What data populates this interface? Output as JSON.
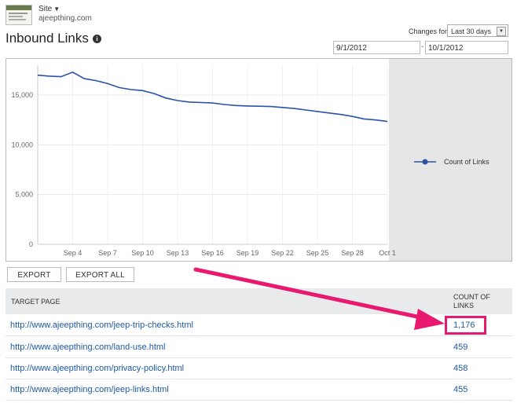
{
  "site": {
    "label": "Site",
    "url": "ajeepthing.com"
  },
  "page": {
    "title": "Inbound Links"
  },
  "filters": {
    "changes_for_label": "Changes for",
    "range_value": "Last 30 days",
    "date_from": "9/1/2012",
    "date_to": "10/1/2012",
    "date_separator": "-"
  },
  "chart_data": {
    "type": "line",
    "series": [
      {
        "name": "Count of Links",
        "x": [
          "Sep 1",
          "Sep 2",
          "Sep 3",
          "Sep 4",
          "Sep 5",
          "Sep 6",
          "Sep 7",
          "Sep 8",
          "Sep 9",
          "Sep 10",
          "Sep 11",
          "Sep 12",
          "Sep 13",
          "Sep 14",
          "Sep 15",
          "Sep 16",
          "Sep 17",
          "Sep 18",
          "Sep 19",
          "Sep 20",
          "Sep 21",
          "Sep 22",
          "Sep 23",
          "Sep 24",
          "Sep 25",
          "Sep 26",
          "Sep 27",
          "Sep 28",
          "Sep 29",
          "Sep 30",
          "Oct 1"
        ],
        "values": [
          17000,
          16900,
          16850,
          17300,
          16650,
          16450,
          16150,
          15750,
          15550,
          15450,
          15150,
          14700,
          14450,
          14300,
          14250,
          14200,
          14050,
          13950,
          13900,
          13880,
          13850,
          13750,
          13650,
          13500,
          13350,
          13200,
          13050,
          12850,
          12600,
          12500,
          12350
        ]
      }
    ],
    "x_tick_labels": [
      "Sep 4",
      "Sep 7",
      "Sep 10",
      "Sep 13",
      "Sep 16",
      "Sep 19",
      "Sep 22",
      "Sep 25",
      "Sep 28",
      "Oct 1"
    ],
    "y_tick_labels": [
      "0",
      "5,000",
      "10,000",
      "15,000"
    ],
    "ylim": [
      0,
      18000
    ],
    "legend_position": "right",
    "colors": {
      "line": "#2a52a8",
      "legend_panel": "#e6e6e6",
      "grid": "#e8e8e8"
    }
  },
  "actions": {
    "export_label": "EXPORT",
    "export_all_label": "EXPORT ALL"
  },
  "table": {
    "headers": {
      "target_page": "TARGET PAGE",
      "count_line1": "COUNT OF",
      "count_line2": "LINKS"
    },
    "rows": [
      {
        "url": "http://www.ajeepthing.com/jeep-trip-checks.html",
        "count": "1,176"
      },
      {
        "url": "http://www.ajeepthing.com/land-use.html",
        "count": "459"
      },
      {
        "url": "http://www.ajeepthing.com/privacy-policy.html",
        "count": "458"
      },
      {
        "url": "http://www.ajeepthing.com/jeep-links.html",
        "count": "455"
      }
    ]
  },
  "annotation": {
    "color": "#e8196e",
    "highlighted_row": 0
  }
}
